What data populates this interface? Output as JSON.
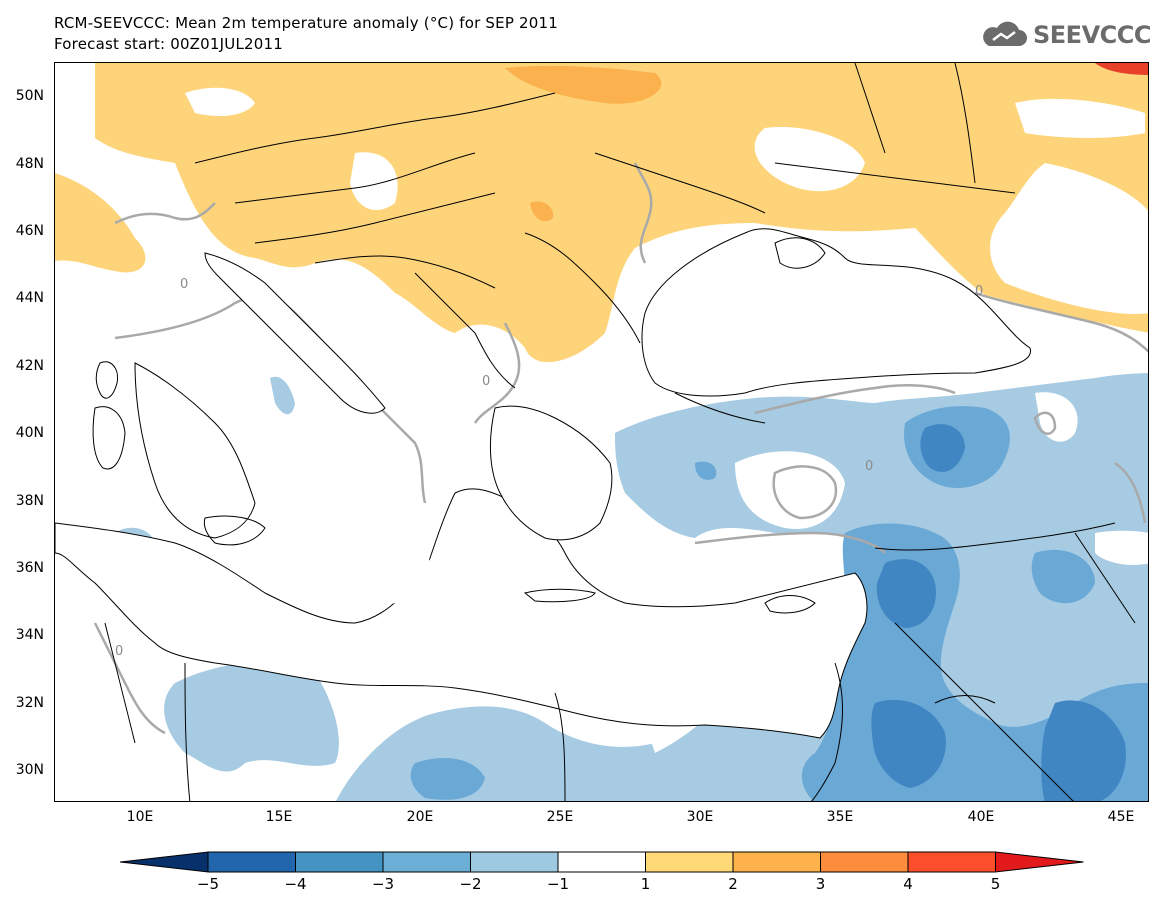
{
  "title_line1": "RCM-SEEVCCC: Mean 2m temperature anomaly (°C) for SEP 2011",
  "title_line2": "Forecast start: 00Z01JUL2011",
  "logo_text": "SEEVCCC",
  "lat_ticks": [
    "50N",
    "48N",
    "46N",
    "44N",
    "42N",
    "40N",
    "38N",
    "36N",
    "34N",
    "32N",
    "30N"
  ],
  "lon_ticks": [
    "10E",
    "15E",
    "20E",
    "25E",
    "30E",
    "35E",
    "40E",
    "45E"
  ],
  "contour_label": "0",
  "colorbar": {
    "labels": [
      "−5",
      "−4",
      "−3",
      "−2",
      "−1",
      "1",
      "2",
      "3",
      "4",
      "5"
    ],
    "colors": [
      "#08306b",
      "#2166ac",
      "#4393c3",
      "#6baed6",
      "#9ecae1",
      "#ffffff",
      "#fed976",
      "#feb24c",
      "#fd8d3c",
      "#fc4e2a",
      "#e31a1c"
    ]
  },
  "palette": {
    "cold1": "#a6cbe3",
    "cold2": "#6aa8d6",
    "cold3": "#3f86c2",
    "warm1": "#fdd47a",
    "warm2": "#fbb14d",
    "warm3": "#f57d3a",
    "hot": "#e8412a",
    "contour": "#a9a9a9",
    "border": "#000000"
  }
}
